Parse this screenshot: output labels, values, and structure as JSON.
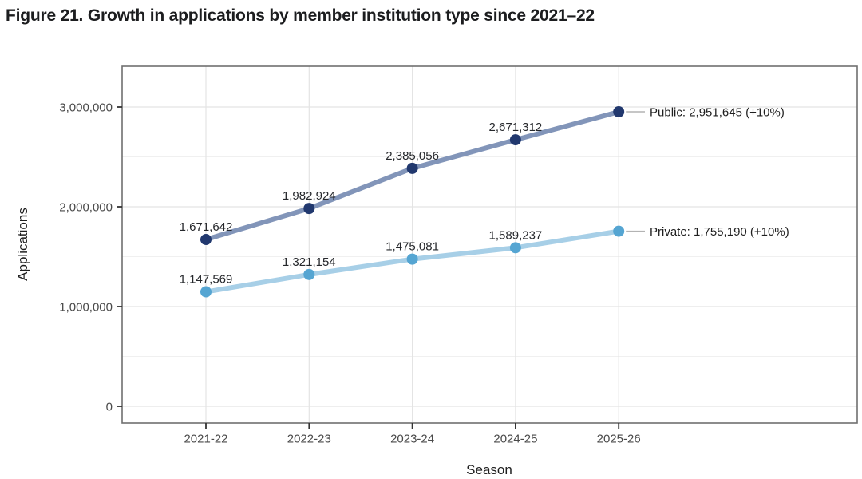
{
  "figure": {
    "title": "Figure 21. Growth in applications by member institution type since 2021–22"
  },
  "chart_data": {
    "type": "line",
    "title": "Figure 21. Growth in applications by member institution type since 2021–22",
    "xlabel": "Season",
    "ylabel": "Applications",
    "categories": [
      "2021-22",
      "2022-23",
      "2023-24",
      "2024-25",
      "2025-26"
    ],
    "ylim": [
      0,
      3400000
    ],
    "yticks": [
      {
        "value": 0,
        "label": "0"
      },
      {
        "value": 1000000,
        "label": "1,000,000"
      },
      {
        "value": 2000000,
        "label": "2,000,000"
      },
      {
        "value": 3000000,
        "label": "3,000,000"
      }
    ],
    "minor_yticks": [
      500000,
      1500000,
      2500000
    ],
    "grid": "horizontal major+minor, vertical at each season",
    "legend_position": "right-edge annotations with leader lines",
    "series": [
      {
        "name": "Public",
        "values": [
          1671642,
          1982924,
          2385056,
          2671312,
          2951645
        ],
        "point_labels": [
          "1,671,642",
          "1,982,924",
          "2,385,056",
          "2,671,312"
        ],
        "annotation": "Public: 2,951,645 (+10%)",
        "line_color": "#8295b9",
        "point_color": "#21386e"
      },
      {
        "name": "Private",
        "values": [
          1147569,
          1321154,
          1475081,
          1589237,
          1755190
        ],
        "point_labels": [
          "1,147,569",
          "1,321,154",
          "1,475,081",
          "1,589,237"
        ],
        "annotation": "Private: 1,755,190 (+10%)",
        "line_color": "#a7cfe7",
        "point_color": "#55a5d2"
      }
    ]
  },
  "colors": {
    "background": "#ffffff",
    "panel_border": "#6f6f6f",
    "grid_major": "#e4e4e4",
    "grid_minor": "#f0f0f0",
    "tick_mark": "#333333",
    "tick_text": "#4a4a4a",
    "axis_title": "#1f1f1f",
    "data_label": "#26282c",
    "annotation_text": "#1f1f1f",
    "leader_line": "#b3b3b3",
    "title_text": "#1c1d1f"
  }
}
